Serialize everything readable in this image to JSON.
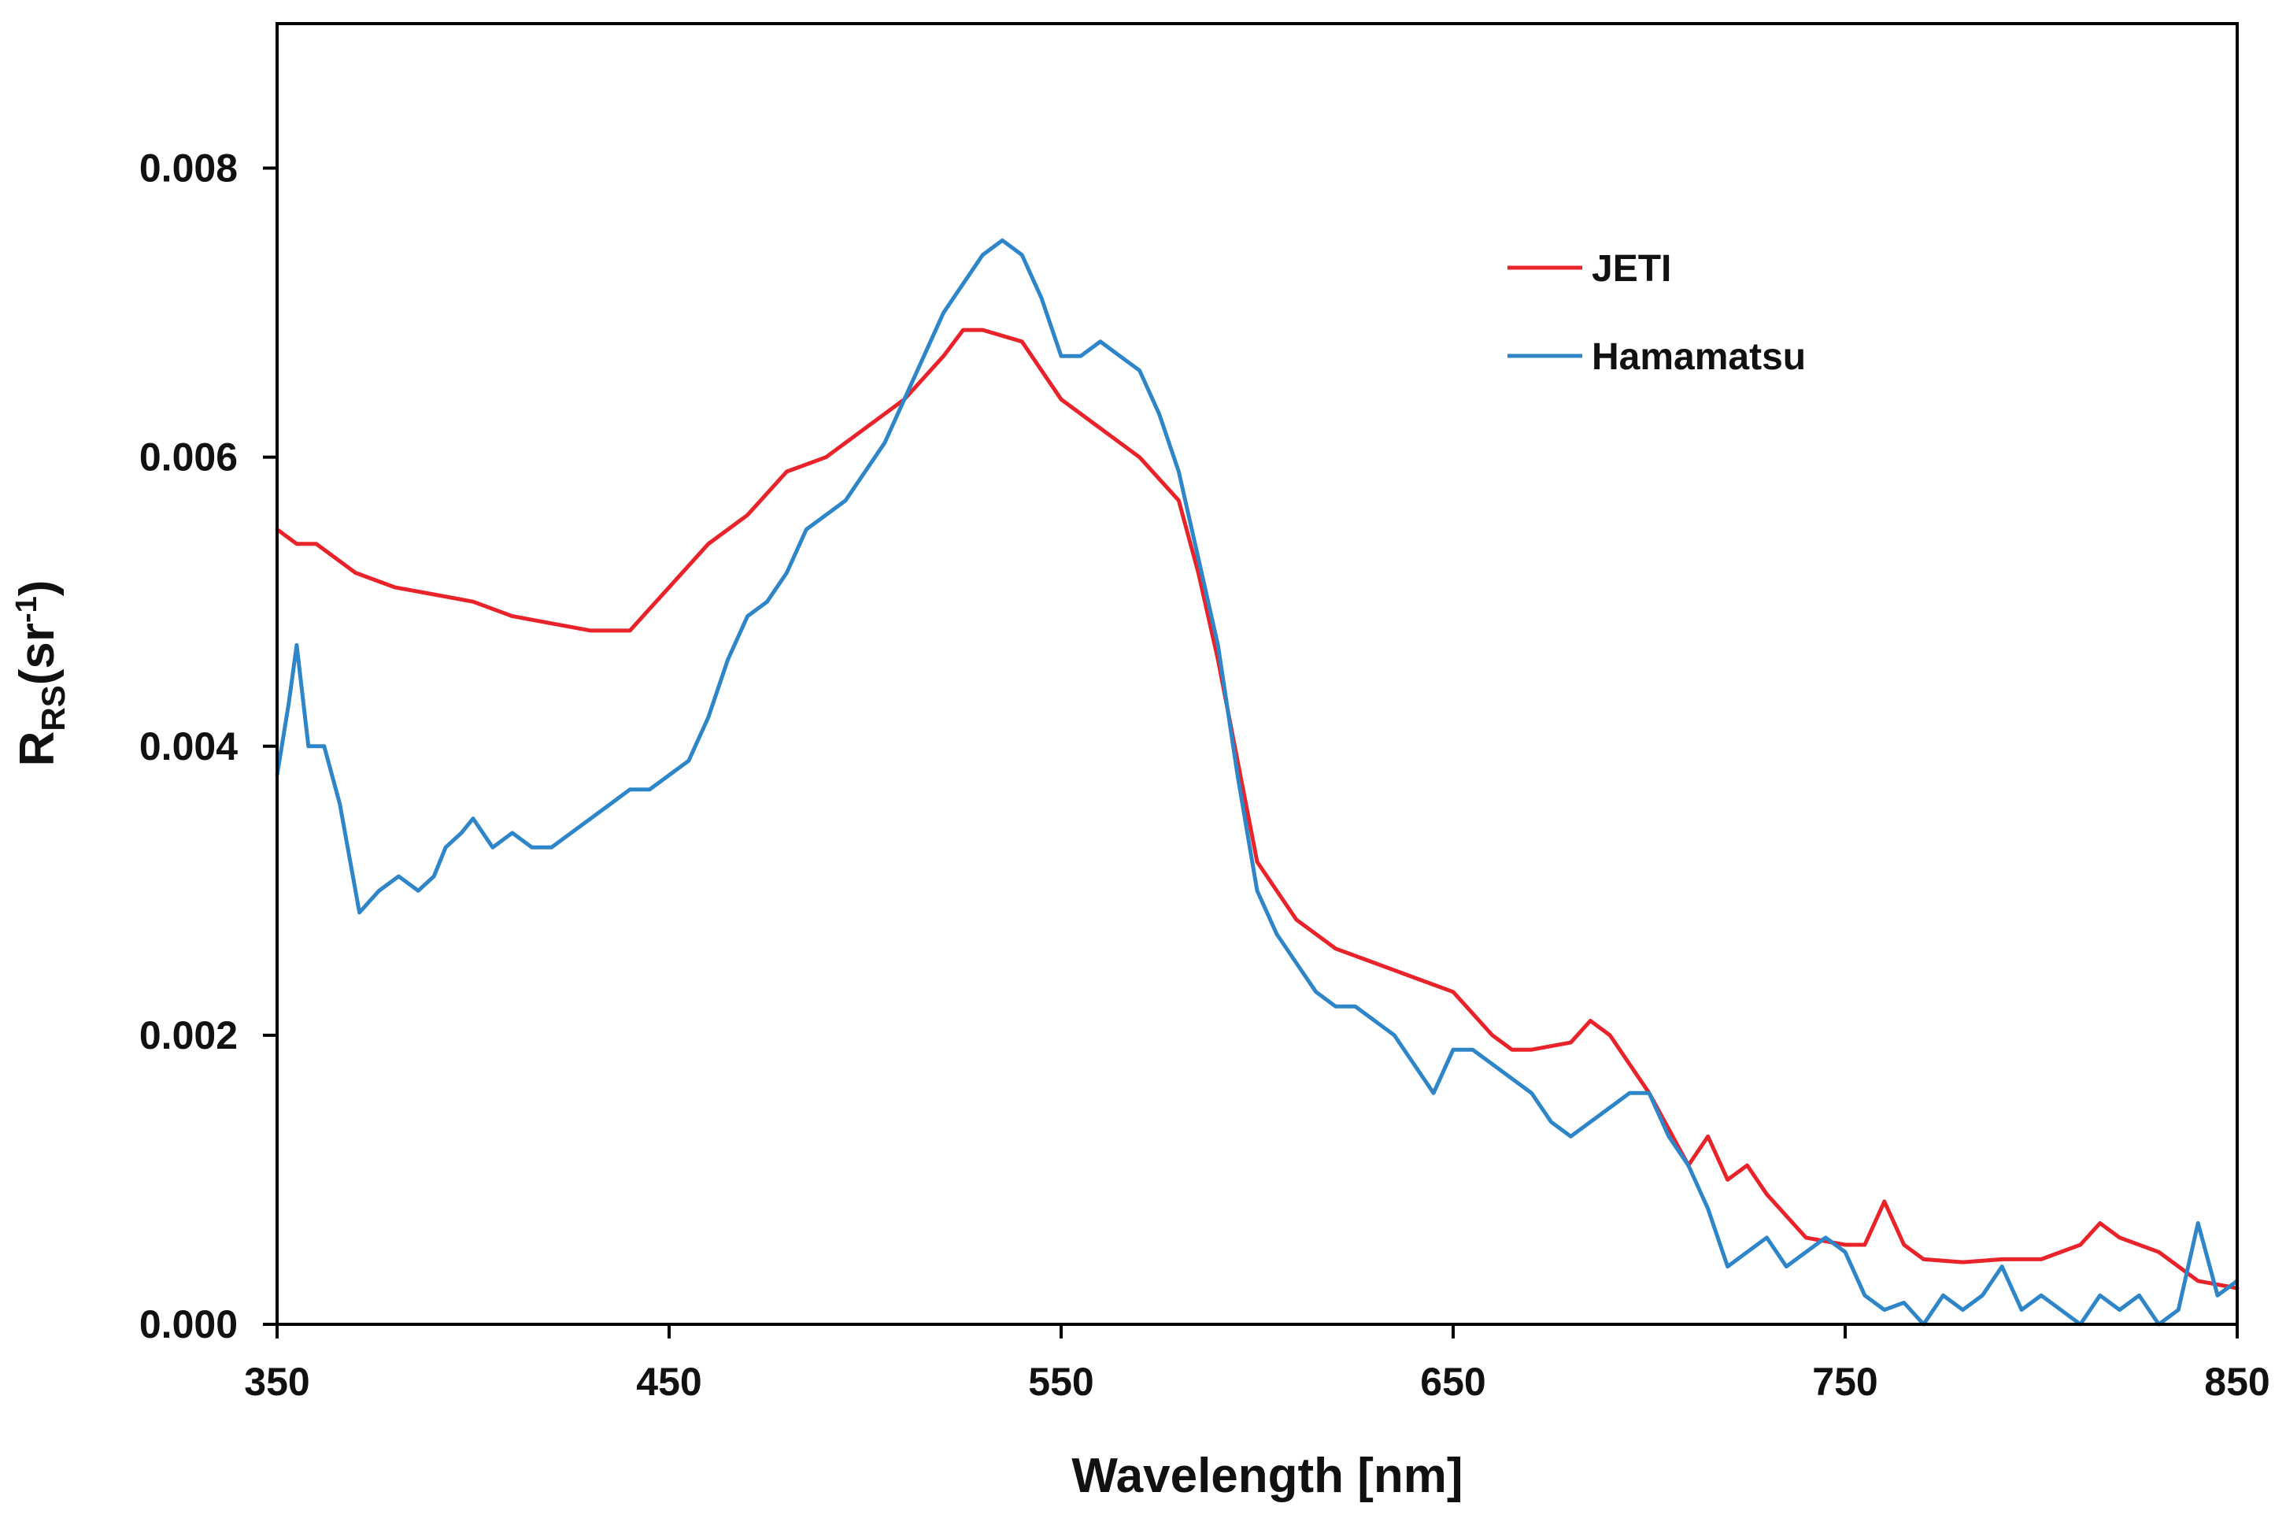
{
  "chart_data": {
    "type": "line",
    "title": "",
    "xlabel": "Wavelength [nm]",
    "ylabel": {
      "main": "R",
      "sub": "RS",
      "open": "(sr",
      "sup": "-1",
      "close": ")"
    },
    "xlim": [
      350,
      850
    ],
    "ylim": [
      0.0,
      0.009
    ],
    "xticks": [
      350,
      450,
      550,
      650,
      750,
      850
    ],
    "xtick_labels": [
      "350",
      "450",
      "550",
      "650",
      "750",
      "850"
    ],
    "yticks": [
      0.0,
      0.002,
      0.004,
      0.006,
      0.008
    ],
    "ytick_labels": [
      "0.000",
      "0.002",
      "0.004",
      "0.006",
      "0.008"
    ],
    "grid": false,
    "legend_position": "top-right",
    "series": [
      {
        "name": "JETI",
        "color": "#e8232a",
        "x": [
          350,
          355,
          360,
          370,
          380,
          390,
          400,
          410,
          420,
          430,
          440,
          450,
          460,
          470,
          480,
          490,
          500,
          510,
          520,
          525,
          530,
          540,
          550,
          560,
          570,
          580,
          585,
          590,
          595,
          600,
          610,
          620,
          630,
          640,
          650,
          660,
          665,
          670,
          680,
          685,
          690,
          700,
          710,
          715,
          720,
          725,
          730,
          740,
          750,
          755,
          760,
          765,
          770,
          780,
          790,
          800,
          810,
          815,
          820,
          830,
          840,
          850
        ],
        "values": [
          0.0055,
          0.0054,
          0.0054,
          0.0052,
          0.0051,
          0.00505,
          0.005,
          0.0049,
          0.00485,
          0.0048,
          0.0048,
          0.0051,
          0.0054,
          0.0056,
          0.0059,
          0.006,
          0.0062,
          0.0064,
          0.0067,
          0.00688,
          0.00688,
          0.0068,
          0.0064,
          0.0062,
          0.006,
          0.0057,
          0.0052,
          0.0046,
          0.0039,
          0.0032,
          0.0028,
          0.0026,
          0.0025,
          0.0024,
          0.0023,
          0.002,
          0.0019,
          0.0019,
          0.00195,
          0.0021,
          0.002,
          0.0016,
          0.0011,
          0.0013,
          0.001,
          0.0011,
          0.0009,
          0.0006,
          0.00055,
          0.00055,
          0.00085,
          0.00055,
          0.00045,
          0.00043,
          0.00045,
          0.00045,
          0.00055,
          0.0007,
          0.0006,
          0.0005,
          0.0003,
          0.00025
        ]
      },
      {
        "name": "Hamamatsu",
        "color": "#2e86c8",
        "x": [
          350,
          353,
          355,
          358,
          362,
          366,
          371,
          376,
          381,
          386,
          390,
          393,
          397,
          400,
          405,
          410,
          415,
          420,
          425,
          430,
          435,
          440,
          445,
          450,
          455,
          460,
          465,
          470,
          475,
          480,
          485,
          490,
          495,
          500,
          505,
          510,
          515,
          520,
          525,
          530,
          535,
          540,
          545,
          550,
          555,
          560,
          565,
          570,
          575,
          580,
          585,
          590,
          595,
          600,
          605,
          610,
          615,
          620,
          625,
          630,
          635,
          640,
          645,
          650,
          655,
          660,
          665,
          670,
          675,
          680,
          685,
          690,
          695,
          700,
          705,
          710,
          715,
          720,
          725,
          730,
          735,
          740,
          745,
          750,
          755,
          760,
          765,
          770,
          775,
          780,
          785,
          790,
          795,
          800,
          805,
          810,
          815,
          820,
          825,
          830,
          835,
          840,
          845,
          850
        ],
        "values": [
          0.0038,
          0.0043,
          0.0047,
          0.004,
          0.004,
          0.0036,
          0.00285,
          0.003,
          0.0031,
          0.003,
          0.0031,
          0.0033,
          0.0034,
          0.0035,
          0.0033,
          0.0034,
          0.0033,
          0.0033,
          0.0034,
          0.0035,
          0.0036,
          0.0037,
          0.0037,
          0.0038,
          0.0039,
          0.0042,
          0.0046,
          0.0049,
          0.005,
          0.0052,
          0.0055,
          0.0056,
          0.0057,
          0.0059,
          0.0061,
          0.0064,
          0.0067,
          0.007,
          0.0072,
          0.0074,
          0.0075,
          0.0074,
          0.0071,
          0.0067,
          0.0067,
          0.0068,
          0.0067,
          0.0066,
          0.0063,
          0.0059,
          0.0053,
          0.0047,
          0.0038,
          0.003,
          0.0027,
          0.0025,
          0.0023,
          0.0022,
          0.0022,
          0.0021,
          0.002,
          0.0018,
          0.0016,
          0.0019,
          0.0019,
          0.0018,
          0.0017,
          0.0016,
          0.0014,
          0.0013,
          0.0014,
          0.0015,
          0.0016,
          0.0016,
          0.0013,
          0.0011,
          0.0008,
          0.0004,
          0.0005,
          0.0006,
          0.0004,
          0.0005,
          0.0006,
          0.0005,
          0.0002,
          0.0001,
          0.00015,
          0.0,
          0.0002,
          0.0001,
          0.0002,
          0.0004,
          0.0001,
          0.0002,
          0.0001,
          0.0,
          0.0002,
          0.0001,
          0.0002,
          0.0,
          0.0001,
          0.0007,
          0.0002,
          0.0003
        ]
      }
    ]
  }
}
